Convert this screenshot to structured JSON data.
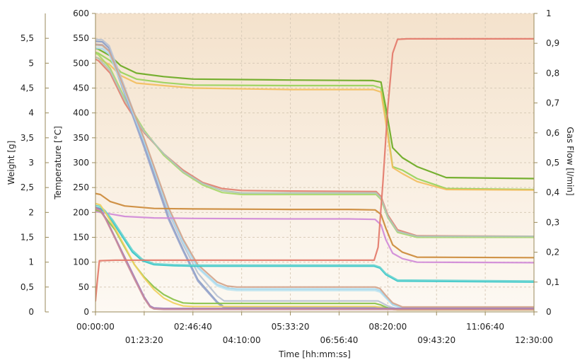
{
  "chart_data": {
    "type": "line",
    "title": "",
    "xlabel": "Time [hh:mm:ss]",
    "x_unit_note": "x values in seconds",
    "xlim": [
      0,
      45000
    ],
    "x_ticks": [
      {
        "v": 0,
        "label": "00:00:00",
        "row": 1
      },
      {
        "v": 5000,
        "label": "01:23:20",
        "row": 2
      },
      {
        "v": 10000,
        "label": "02:46:40",
        "row": 1
      },
      {
        "v": 15000,
        "label": "04:10:00",
        "row": 2
      },
      {
        "v": 20000,
        "label": "05:33:20",
        "row": 1
      },
      {
        "v": 25000,
        "label": "06:56:40",
        "row": 2
      },
      {
        "v": 30000,
        "label": "08:20:00",
        "row": 1
      },
      {
        "v": 35000,
        "label": "09:43:20",
        "row": 2
      },
      {
        "v": 40000,
        "label": "11:06:40",
        "row": 1
      },
      {
        "v": 45000,
        "label": "12:30:00",
        "row": 2
      }
    ],
    "weight_axis": {
      "label": "Weight [g]",
      "ylim": [
        0,
        6
      ],
      "ticks": [
        {
          "v": 0,
          "label": "0"
        },
        {
          "v": 0.5,
          "label": "0,5"
        },
        {
          "v": 1,
          "label": "1"
        },
        {
          "v": 1.5,
          "label": "1,5"
        },
        {
          "v": 2,
          "label": "2"
        },
        {
          "v": 2.5,
          "label": "2,5"
        },
        {
          "v": 3,
          "label": "3"
        },
        {
          "v": 3.5,
          "label": "3,5"
        },
        {
          "v": 4,
          "label": "4"
        },
        {
          "v": 4.5,
          "label": "4,5"
        },
        {
          "v": 5,
          "label": "5"
        },
        {
          "v": 5.5,
          "label": "5,5"
        }
      ]
    },
    "temperature_axis": {
      "label": "Temperature [°C]",
      "ylim": [
        0,
        600
      ],
      "ticks": [
        {
          "v": 0,
          "label": "0"
        },
        {
          "v": 50,
          "label": "50"
        },
        {
          "v": 100,
          "label": "100"
        },
        {
          "v": 150,
          "label": "150"
        },
        {
          "v": 200,
          "label": "200"
        },
        {
          "v": 250,
          "label": "250"
        },
        {
          "v": 300,
          "label": "300"
        },
        {
          "v": 350,
          "label": "350"
        },
        {
          "v": 400,
          "label": "400"
        },
        {
          "v": 450,
          "label": "450"
        },
        {
          "v": 500,
          "label": "500"
        },
        {
          "v": 550,
          "label": "550"
        },
        {
          "v": 600,
          "label": "600"
        }
      ]
    },
    "gasflow_axis": {
      "label": "Gas Flow [l/min]",
      "ylim": [
        0,
        1
      ],
      "ticks": [
        {
          "v": 0,
          "label": "0"
        },
        {
          "v": 0.1,
          "label": "0,1"
        },
        {
          "v": 0.2,
          "label": "0,2"
        },
        {
          "v": 0.3,
          "label": "0,3"
        },
        {
          "v": 0.4,
          "label": "0,4"
        },
        {
          "v": 0.5,
          "label": "0,5"
        },
        {
          "v": 0.6,
          "label": "0,6"
        },
        {
          "v": 0.7,
          "label": "0,7"
        },
        {
          "v": 0.8,
          "label": "0,8"
        },
        {
          "v": 0.9,
          "label": "0,9"
        },
        {
          "v": 1,
          "label": "1"
        }
      ]
    },
    "grid": true,
    "series": [
      {
        "axis": "temperature",
        "color": "#6aaa22",
        "x": [
          0,
          300,
          1500,
          2600,
          4200,
          7000,
          10000,
          20000,
          28500,
          29300,
          29800,
          30500,
          31500,
          33000,
          36000,
          45000
        ],
        "y": [
          530,
          528,
          515,
          495,
          480,
          473,
          468,
          466,
          465,
          462,
          410,
          330,
          310,
          292,
          270,
          268
        ]
      },
      {
        "axis": "temperature",
        "color": "#98d25a",
        "x": [
          0,
          300,
          1500,
          2600,
          4200,
          7000,
          10000,
          20000,
          28500,
          29300,
          29800,
          30500,
          31500,
          33000,
          36000,
          45000
        ],
        "y": [
          522,
          520,
          505,
          482,
          468,
          461,
          456,
          455,
          455,
          450,
          390,
          292,
          285,
          268,
          248,
          246
        ]
      },
      {
        "axis": "temperature",
        "color": "#f2be60",
        "x": [
          0,
          300,
          1500,
          2600,
          4200,
          7000,
          10000,
          20000,
          28500,
          29300,
          29800,
          30500,
          31500,
          33000,
          36000,
          45000
        ],
        "y": [
          512,
          510,
          496,
          475,
          460,
          455,
          450,
          447,
          447,
          442,
          380,
          290,
          278,
          262,
          246,
          245
        ]
      },
      {
        "axis": "temperature",
        "color": "#e08070",
        "x": [
          0,
          300,
          1500,
          3000,
          5000,
          7000,
          9000,
          11000,
          13000,
          15000,
          20000,
          28800,
          29300,
          30000,
          31000,
          33000,
          45000
        ],
        "y": [
          508,
          505,
          480,
          420,
          360,
          318,
          285,
          260,
          248,
          244,
          243,
          242,
          232,
          195,
          165,
          153,
          152
        ]
      },
      {
        "axis": "temperature",
        "color": "#a8d86a",
        "x": [
          0,
          300,
          1500,
          3000,
          5000,
          7000,
          9000,
          11000,
          13000,
          15000,
          20000,
          28800,
          29300,
          30000,
          31000,
          33000,
          45000
        ],
        "y": [
          520,
          517,
          490,
          430,
          365,
          315,
          280,
          255,
          240,
          236,
          236,
          236,
          226,
          190,
          160,
          150,
          150
        ]
      },
      {
        "axis": "temperature",
        "color": "#b0c4b8",
        "x": [
          0,
          300,
          1500,
          3000,
          5000,
          7000,
          9000,
          11000,
          13000,
          15000,
          20000,
          28800,
          29300,
          30000,
          31000,
          33000,
          45000
        ],
        "y": [
          512,
          510,
          485,
          426,
          362,
          318,
          282,
          258,
          244,
          239,
          239,
          239,
          229,
          192,
          162,
          152,
          152
        ]
      },
      {
        "axis": "temperature",
        "color": "#8a9ec8",
        "x": [
          0,
          700,
          1400,
          2500,
          5000,
          7500,
          9000,
          10500,
          12500,
          13200,
          14000,
          25000,
          29000,
          30000,
          31000,
          45000
        ],
        "y": [
          544,
          543,
          530,
          470,
          335,
          190,
          125,
          65,
          20,
          10,
          10,
          10,
          10,
          8,
          6,
          6
        ]
      },
      {
        "axis": "temperature",
        "color": "#9aa6cc",
        "x": [
          0,
          700,
          1400,
          2500,
          5000,
          7500,
          9000,
          10500,
          12500,
          13200,
          14000,
          25000,
          29000,
          30000,
          31000,
          45000
        ],
        "y": [
          538,
          537,
          525,
          465,
          330,
          186,
          122,
          62,
          18,
          8,
          8,
          8,
          8,
          6,
          4,
          4
        ]
      },
      {
        "axis": "temperature",
        "color": "#b8c2d2",
        "x": [
          0,
          700,
          1400,
          2500,
          5000,
          7500,
          9000,
          10500,
          12500,
          13200,
          14000,
          25000,
          29000,
          30000,
          31000,
          45000
        ],
        "y": [
          548,
          547,
          535,
          478,
          345,
          200,
          135,
          78,
          32,
          22,
          22,
          22,
          22,
          12,
          6,
          6
        ]
      },
      {
        "axis": "temperature",
        "color": "#bfe4f0",
        "x": [
          0,
          700,
          1400,
          2500,
          5000,
          7500,
          9000,
          10500,
          12500,
          13500,
          14500,
          20000,
          28700,
          29200,
          29800,
          30500,
          31500,
          45000
        ],
        "y": [
          535,
          534,
          522,
          470,
          345,
          205,
          140,
          88,
          52,
          45,
          43,
          43,
          43,
          40,
          28,
          14,
          6,
          6
        ]
      },
      {
        "axis": "temperature",
        "color": "#a8d8ee",
        "x": [
          0,
          700,
          1400,
          2500,
          5000,
          7500,
          9000,
          10500,
          12500,
          13500,
          14500,
          20000,
          28700,
          29200,
          29800,
          30500,
          31500,
          45000
        ],
        "y": [
          530,
          529,
          518,
          468,
          342,
          205,
          142,
          90,
          55,
          48,
          46,
          46,
          46,
          43,
          30,
          15,
          8,
          8
        ]
      },
      {
        "axis": "temperature",
        "color": "#d2a48c",
        "x": [
          0,
          700,
          1400,
          2500,
          5000,
          7500,
          9000,
          10500,
          12500,
          13500,
          14500,
          20000,
          28700,
          29200,
          29800,
          30500,
          31500,
          45000
        ],
        "y": [
          537,
          536,
          524,
          472,
          348,
          210,
          146,
          95,
          60,
          52,
          50,
          50,
          50,
          47,
          33,
          18,
          10,
          10
        ]
      },
      {
        "axis": "temperature",
        "color": "#cc8a3a",
        "x": [
          0,
          500,
          1500,
          3000,
          6000,
          10000,
          20000,
          26000,
          28700,
          29300,
          29800,
          30500,
          31500,
          33000,
          45000
        ],
        "y": [
          238,
          236,
          222,
          213,
          208,
          207,
          206,
          206,
          205,
          196,
          168,
          135,
          120,
          110,
          109
        ]
      },
      {
        "axis": "temperature",
        "color": "#d08ad8",
        "x": [
          0,
          500,
          1500,
          3000,
          6000,
          10000,
          20000,
          26000,
          28700,
          29300,
          29800,
          30500,
          31500,
          33000,
          45000
        ],
        "y": [
          202,
          200,
          197,
          192,
          189,
          188,
          187,
          187,
          186,
          175,
          145,
          118,
          107,
          100,
          99
        ]
      },
      {
        "axis": "temperature",
        "color": "#30c4c8",
        "x": [
          0,
          500,
          1000,
          1800,
          2800,
          3800,
          4800,
          6000,
          8000,
          10000,
          20000,
          28600,
          29200,
          29800,
          31000,
          45000
        ],
        "y": [
          210,
          208,
          200,
          180,
          150,
          120,
          103,
          95,
          93,
          92,
          92,
          92,
          88,
          75,
          62,
          60
        ]
      },
      {
        "axis": "temperature",
        "color": "#6ad4d0",
        "x": [
          0,
          500,
          1000,
          1800,
          2800,
          3800,
          4800,
          6000,
          8000,
          10000,
          20000,
          28600,
          29200,
          29800,
          31000,
          45000
        ],
        "y": [
          214,
          212,
          203,
          184,
          154,
          124,
          106,
          97,
          95,
          94,
          94,
          94,
          90,
          77,
          64,
          62
        ]
      },
      {
        "axis": "temperature",
        "color": "#8ac24a",
        "x": [
          0,
          500,
          1000,
          2000,
          3000,
          4000,
          5000,
          6000,
          7000,
          8000,
          9000,
          10000,
          20000,
          28700,
          29300,
          30000,
          31000,
          45000
        ],
        "y": [
          205,
          202,
          190,
          165,
          130,
          95,
          70,
          50,
          35,
          25,
          18,
          17,
          17,
          17,
          14,
          8,
          5,
          5
        ]
      },
      {
        "axis": "temperature",
        "color": "#f0d060",
        "x": [
          0,
          500,
          1000,
          2000,
          3000,
          4000,
          5000,
          6000,
          7000,
          8000,
          9000,
          10000,
          20000,
          28700,
          29300,
          30000,
          31000,
          45000
        ],
        "y": [
          218,
          215,
          200,
          168,
          132,
          95,
          68,
          45,
          28,
          18,
          12,
          11,
          11,
          11,
          9,
          6,
          4,
          4
        ]
      },
      {
        "axis": "temperature",
        "color": "#a07ab8",
        "x": [
          0,
          500,
          1000,
          2000,
          3000,
          4000,
          5000,
          5600,
          6000,
          7000,
          15000,
          29000,
          45000
        ],
        "y": [
          210,
          206,
          190,
          150,
          110,
          70,
          30,
          12,
          8,
          7,
          7,
          7,
          7
        ]
      },
      {
        "axis": "temperature",
        "color": "#c88a9a",
        "x": [
          0,
          500,
          1000,
          2000,
          3000,
          4000,
          5000,
          5600,
          6000,
          7000,
          15000,
          29000,
          45000
        ],
        "y": [
          208,
          204,
          188,
          148,
          106,
          66,
          27,
          10,
          6,
          5,
          5,
          5,
          5
        ]
      },
      {
        "axis": "temperature",
        "color": "#e37a6a",
        "x": [
          0,
          150,
          400,
          2000,
          10000,
          20000,
          28600,
          29000,
          29500,
          30000,
          30500,
          31000,
          32000,
          40000,
          45000
        ],
        "y": [
          22,
          55,
          103,
          104,
          104,
          104,
          104,
          130,
          260,
          410,
          520,
          548,
          549,
          549,
          549
        ]
      }
    ]
  }
}
